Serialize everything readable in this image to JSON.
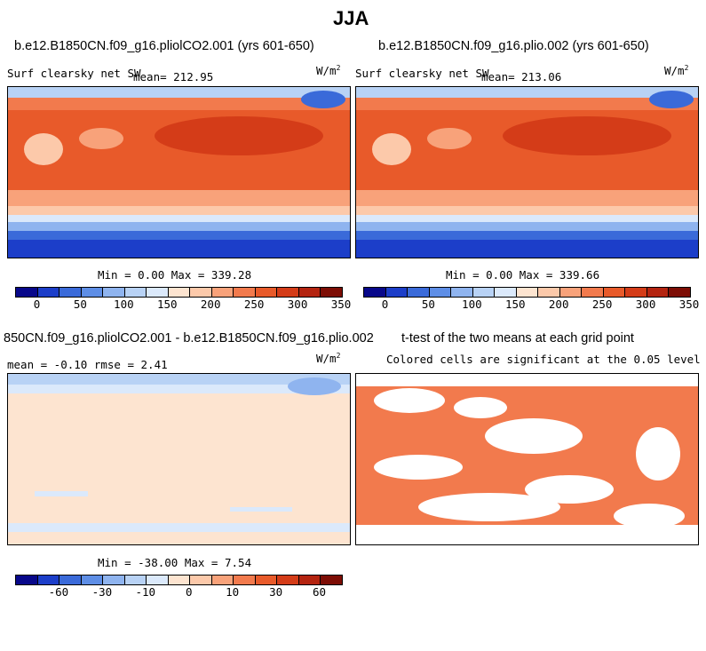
{
  "figure_title": "JJA",
  "panels": [
    {
      "id": "case1",
      "title": "b.e12.B1850CN.f09_g16.pliolCO2.001 (yrs 601-650)",
      "left_label": "Surf clearsky net SW",
      "stat_label": "mean= 212.95",
      "unit": "W/m",
      "unit_exp": "2",
      "minmax": "Min =   0.00 Max = 339.28"
    },
    {
      "id": "case2",
      "title": "b.e12.B1850CN.f09_g16.plio.002 (yrs 601-650)",
      "left_label": "Surf clearsky net SW",
      "stat_label": "mean= 213.06",
      "unit": "W/m",
      "unit_exp": "2",
      "minmax": "Min =   0.00 Max = 339.66"
    },
    {
      "id": "diff",
      "title": "850CN.f09_g16.pliolCO2.001 - b.e12.B1850CN.f09_g16.plio.002",
      "stat_label": "mean =  -0.10     rmse =    2.41",
      "unit": "W/m",
      "unit_exp": "2",
      "minmax": "Min = -38.00 Max =   7.54"
    },
    {
      "id": "ttest",
      "title": "t-test of the two means at each grid point",
      "subtitle": "Colored cells are significant at the 0.05 level"
    }
  ],
  "colorbars": {
    "absolute": {
      "colors": [
        "#08088a",
        "#1c3ec9",
        "#3a6ad9",
        "#5e8ee6",
        "#8fb4ef",
        "#b8d2f5",
        "#dbe9fb",
        "#fde4d0",
        "#fcc9aa",
        "#f8a27a",
        "#f27a4d",
        "#e85a2a",
        "#d43c18",
        "#b42410",
        "#7d0d05"
      ],
      "ticks": [
        "0",
        "50",
        "100",
        "150",
        "200",
        "250",
        "300",
        "350"
      ]
    },
    "difference": {
      "colors": [
        "#08088a",
        "#1c3ec9",
        "#3a6ad9",
        "#5e8ee6",
        "#8fb4ef",
        "#b8d2f5",
        "#dbe9fb",
        "#fde4d0",
        "#fcc9aa",
        "#f8a27a",
        "#f27a4d",
        "#e85a2a",
        "#d43c18",
        "#b42410",
        "#7d0d05"
      ],
      "ticks": [
        "-60",
        "-30",
        "-10",
        "0",
        "10",
        "30",
        "60"
      ]
    }
  },
  "chart_data": [
    {
      "type": "heatmap",
      "panel": "case1",
      "variable": "Surf clearsky net SW",
      "units": "W/m2",
      "mean": 212.95,
      "min": 0.0,
      "max": 339.28,
      "colorbar_ticks": [
        0,
        50,
        100,
        150,
        200,
        250,
        300,
        350
      ]
    },
    {
      "type": "heatmap",
      "panel": "case2",
      "variable": "Surf clearsky net SW",
      "units": "W/m2",
      "mean": 213.06,
      "min": 0.0,
      "max": 339.66,
      "colorbar_ticks": [
        0,
        50,
        100,
        150,
        200,
        250,
        300,
        350
      ]
    },
    {
      "type": "heatmap",
      "panel": "diff",
      "units": "W/m2",
      "mean": -0.1,
      "rmse": 2.41,
      "min": -38.0,
      "max": 7.54,
      "colorbar_ticks": [
        -60,
        -30,
        -10,
        0,
        10,
        30,
        60
      ]
    },
    {
      "type": "heatmap",
      "panel": "ttest",
      "significance_level": 0.05,
      "significant_color": "#f27a4d"
    }
  ]
}
